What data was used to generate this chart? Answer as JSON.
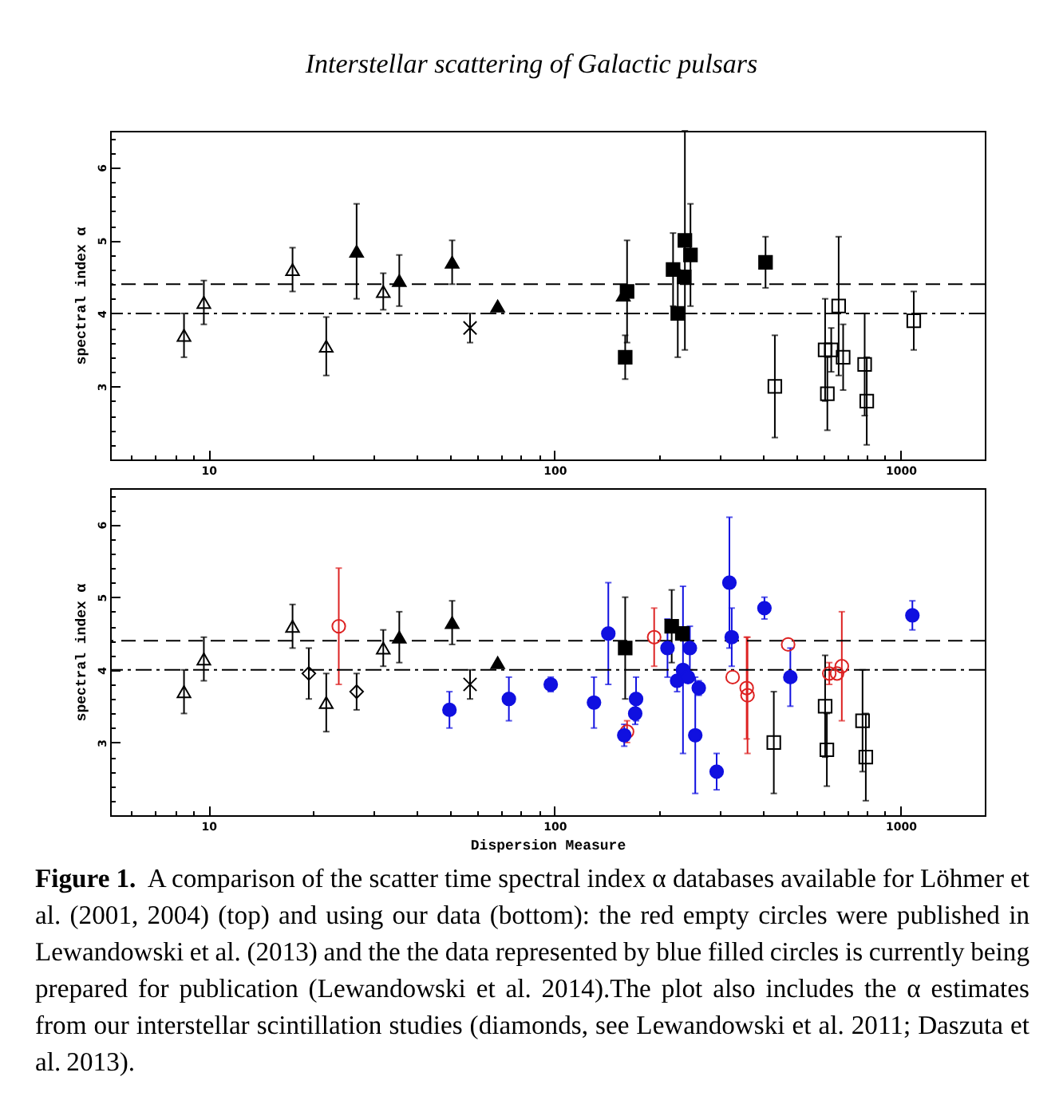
{
  "chart_data": [
    {
      "type": "scatter",
      "title": "Interstellar scattering of Galactic pulsars",
      "ylabel": "spectral index α",
      "log": "x",
      "xlim": [
        5.2,
        1750
      ],
      "ylim": [
        2,
        6.5
      ],
      "xticks": [
        {
          "value": 6,
          "label": null
        },
        {
          "value": 7,
          "label": null
        },
        {
          "value": 8,
          "label": null
        },
        {
          "value": 9,
          "label": null
        },
        10,
        {
          "value": 20,
          "label": null
        },
        {
          "value": 30,
          "label": null
        },
        {
          "value": 40,
          "label": null
        },
        {
          "value": 50,
          "label": null
        },
        {
          "value": 60,
          "label": null
        },
        {
          "value": 70,
          "label": null
        },
        {
          "value": 80,
          "label": null
        },
        {
          "value": 90,
          "label": null
        },
        100,
        {
          "value": 200,
          "label": null
        },
        {
          "value": 300,
          "label": null
        },
        {
          "value": 400,
          "label": null
        },
        {
          "value": 500,
          "label": null
        },
        {
          "value": 600,
          "label": null
        },
        {
          "value": 700,
          "label": null
        },
        {
          "value": 800,
          "label": null
        },
        {
          "value": 900,
          "label": null
        },
        1000
      ],
      "yticks": [
        {
          "value": 2.2,
          "label": null
        },
        {
          "value": 2.4,
          "label": null
        },
        {
          "value": 2.6,
          "label": null
        },
        {
          "value": 2.8,
          "label": null
        },
        3,
        {
          "value": 3.2,
          "label": null
        },
        {
          "value": 3.4,
          "label": null
        },
        {
          "value": 3.6,
          "label": null
        },
        {
          "value": 3.8,
          "label": null
        },
        4,
        {
          "value": 4.2,
          "label": null
        },
        {
          "value": 4.4,
          "label": null
        },
        {
          "value": 4.6,
          "label": null
        },
        {
          "value": 4.8,
          "label": null
        },
        5,
        {
          "value": 5.2,
          "label": null
        },
        {
          "value": 5.4,
          "label": null
        },
        {
          "value": 5.6,
          "label": null
        },
        {
          "value": 5.8,
          "label": null
        },
        6,
        {
          "value": 6.2,
          "label": null
        },
        {
          "value": 6.4,
          "label": null
        }
      ],
      "ref_lines": [
        {
          "axis": "y",
          "value": 4.4,
          "line_style": "dashed",
          "color": "#000000"
        },
        {
          "axis": "y",
          "value": 4,
          "line_style": "dashdot",
          "color": "#000000"
        }
      ],
      "series": [
        {
          "color": "#000000",
          "marker": "triangle-open",
          "x": [
            8.5,
            9.7,
            17.5,
            21.9,
            32
          ],
          "values": [
            3.7,
            4.15,
            4.6,
            3.55,
            4.3
          ],
          "errors": [
            0.3,
            0.3,
            0.3,
            0.4,
            0.25
          ]
        },
        {
          "color": "#000000",
          "marker": "triangle",
          "x": [
            26.8,
            35.6,
            50.6,
            68.5,
            158
          ],
          "values": [
            4.85,
            4.45,
            4.7,
            4.1,
            4.25
          ],
          "errors": [
            0.65,
            0.35,
            0.3,
            null,
            null
          ]
        },
        {
          "color": "#000000",
          "marker": "cross",
          "x": [
            57
          ],
          "values": [
            3.8
          ],
          "errors": [
            0.2
          ]
        },
        {
          "color": "#000000",
          "marker": "square",
          "x": [
            162,
            160,
            220,
            227,
            238,
            237,
            247,
            407
          ],
          "values": [
            4.3,
            3.4,
            4.6,
            4.0,
            5.0,
            4.5,
            4.8,
            4.7
          ],
          "errors": [
            0.7,
            0.3,
            0.5,
            0.6,
            1.5,
            null,
            0.7,
            0.35
          ]
        },
        {
          "color": "#000000",
          "marker": "square-open",
          "x": [
            433,
            605,
            614,
            630,
            662,
            682,
            787,
            798,
            1091
          ],
          "values": [
            3.0,
            3.5,
            2.9,
            3.5,
            4.1,
            3.4,
            3.3,
            2.8,
            3.9
          ],
          "errors": [
            0.7,
            0.7,
            0.5,
            0.3,
            0.95,
            0.45,
            0.7,
            0.6,
            0.4
          ]
        }
      ]
    },
    {
      "type": "scatter",
      "xlabel": "Dispersion Measure",
      "ylabel": "spectral index α",
      "log": "x",
      "xlim": [
        5.2,
        1750
      ],
      "ylim": [
        2,
        6.5
      ],
      "xticks": [
        {
          "value": 6,
          "label": null
        },
        {
          "value": 7,
          "label": null
        },
        {
          "value": 8,
          "label": null
        },
        {
          "value": 9,
          "label": null
        },
        10,
        {
          "value": 20,
          "label": null
        },
        {
          "value": 30,
          "label": null
        },
        {
          "value": 40,
          "label": null
        },
        {
          "value": 50,
          "label": null
        },
        {
          "value": 60,
          "label": null
        },
        {
          "value": 70,
          "label": null
        },
        {
          "value": 80,
          "label": null
        },
        {
          "value": 90,
          "label": null
        },
        100,
        {
          "value": 200,
          "label": null
        },
        {
          "value": 300,
          "label": null
        },
        {
          "value": 400,
          "label": null
        },
        {
          "value": 500,
          "label": null
        },
        {
          "value": 600,
          "label": null
        },
        {
          "value": 700,
          "label": null
        },
        {
          "value": 800,
          "label": null
        },
        {
          "value": 900,
          "label": null
        },
        1000
      ],
      "yticks": [
        {
          "value": 2.2,
          "label": null
        },
        {
          "value": 2.4,
          "label": null
        },
        {
          "value": 2.6,
          "label": null
        },
        {
          "value": 2.8,
          "label": null
        },
        3,
        {
          "value": 3.2,
          "label": null
        },
        {
          "value": 3.4,
          "label": null
        },
        {
          "value": 3.6,
          "label": null
        },
        {
          "value": 3.8,
          "label": null
        },
        4,
        {
          "value": 4.2,
          "label": null
        },
        {
          "value": 4.4,
          "label": null
        },
        {
          "value": 4.6,
          "label": null
        },
        {
          "value": 4.8,
          "label": null
        },
        5,
        {
          "value": 5.2,
          "label": null
        },
        {
          "value": 5.4,
          "label": null
        },
        {
          "value": 5.6,
          "label": null
        },
        {
          "value": 5.8,
          "label": null
        },
        6,
        {
          "value": 6.2,
          "label": null
        },
        {
          "value": 6.4,
          "label": null
        }
      ],
      "ref_lines": [
        {
          "axis": "y",
          "value": 4.4,
          "line_style": "dashed",
          "color": "#000000"
        },
        {
          "axis": "y",
          "value": 4,
          "line_style": "dashdot",
          "color": "#000000"
        }
      ],
      "series": [
        {
          "color": "#000000",
          "marker": "triangle-open",
          "x": [
            8.5,
            9.7,
            17.5,
            21.9,
            32
          ],
          "values": [
            3.7,
            4.15,
            4.6,
            3.55,
            4.3
          ],
          "errors": [
            0.3,
            0.3,
            0.3,
            0.4,
            0.25
          ]
        },
        {
          "color": "#000000",
          "marker": "triangle",
          "x": [
            35.6,
            50.6,
            68.5
          ],
          "values": [
            4.45,
            4.65,
            4.1
          ],
          "errors": [
            0.35,
            0.3,
            null
          ]
        },
        {
          "color": "#000000",
          "marker": "cross",
          "x": [
            57
          ],
          "values": [
            3.8
          ],
          "errors": [
            0.2
          ]
        },
        {
          "color": "#000000",
          "marker": "diamond-open",
          "x": [
            19.5,
            26.8
          ],
          "values": [
            3.95,
            3.7
          ],
          "errors": [
            0.35,
            0.25
          ]
        },
        {
          "color": "#000000",
          "marker": "square",
          "x": [
            160,
            218,
            234
          ],
          "values": [
            4.3,
            4.6,
            4.5
          ],
          "errors": [
            0.7,
            0.5,
            null
          ]
        },
        {
          "color": "#000000",
          "marker": "square-open",
          "x": [
            430,
            605,
            612,
            776,
            793
          ],
          "values": [
            3.0,
            3.5,
            2.9,
            3.3,
            2.8
          ],
          "errors": [
            0.7,
            0.7,
            0.5,
            0.7,
            0.6
          ]
        },
        {
          "color": "#dd2222",
          "marker": "circle-open",
          "x": [
            23.8,
            162,
            194,
            327,
            359,
            361,
            473,
            622,
            655,
            676
          ],
          "values": [
            4.6,
            3.15,
            4.45,
            3.9,
            3.75,
            3.65,
            4.35,
            3.95,
            3.95,
            4.05
          ],
          "errors": [
            0.8,
            0.15,
            0.4,
            null,
            0.7,
            0.8,
            null,
            0.15,
            null,
            0.75
          ]
        },
        {
          "color": "#1010e0",
          "marker": "circle",
          "x": [
            49.7,
            73.8,
            97.5,
            130,
            143,
            159,
            172,
            171,
            212,
            226,
            235,
            243,
            246,
            255,
            261,
            294,
            320,
            325,
            404,
            480,
            1081
          ],
          "values": [
            3.45,
            3.6,
            3.8,
            3.55,
            4.5,
            3.1,
            3.6,
            3.4,
            4.3,
            3.85,
            4.0,
            3.9,
            4.3,
            3.1,
            3.75,
            2.6,
            5.2,
            4.45,
            4.85,
            3.9,
            4.75
          ],
          "errors": [
            0.25,
            0.3,
            0.1,
            0.35,
            0.7,
            0.15,
            0.3,
            0.15,
            0.4,
            0.15,
            1.15,
            null,
            0.3,
            0.8,
            0.1,
            0.25,
            0.9,
            0.4,
            0.15,
            0.4,
            0.2
          ]
        }
      ],
      "annotations": [
        "Figure 1. A comparison of the scatter time spectral index α databases available for Löhmer et al. (2001, 2004) (top) and using our data (bottom): the red empty circles were published in Lewandowski et al. (2013) and the the data represented by blue filled circles is currently being prepared for publication (Lewandowski et al. 2014).The plot also includes the α estimates from our interstellar scintillation studies (diamonds, see Lewandowski et al. 2011; Daszuta et al. 2013)."
      ]
    }
  ]
}
